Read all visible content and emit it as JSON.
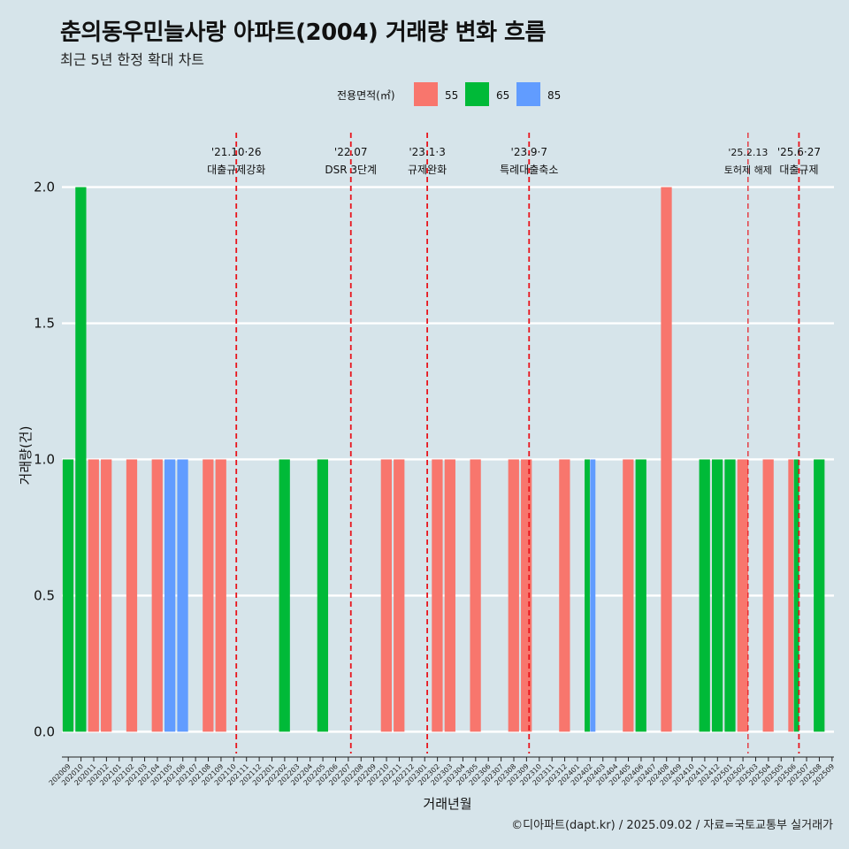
{
  "header": {
    "title": "춘의동우민늘사랑 아파트(2004) 거래량 변화 흐름",
    "subtitle": "최근 5년 한정 확대 차트",
    "caption": "©디아파트(dapt.kr) / 2025.09.02 / 자료=국토교통부 실거래가"
  },
  "chart_data": {
    "type": "bar",
    "title": "춘의동우민늘사랑 아파트(2004) 거래량 변화 흐름",
    "subtitle": "최근 5년 한정 확대 차트",
    "xlabel": "거래년월",
    "ylabel": "거래량(건)",
    "ylim": [
      -0.08,
      2.2
    ],
    "yticks": [
      0.0,
      0.5,
      1.0,
      1.5,
      2.0
    ],
    "ytick_labels": [
      "0.0",
      "0.5",
      "1.0",
      "1.5",
      "2.0"
    ],
    "grid": "horizontal",
    "legend": {
      "title": "전용면적(㎡)",
      "position": "top-center"
    },
    "categories": [
      "202009",
      "202010",
      "202011",
      "202012",
      "202101",
      "202102",
      "202103",
      "202104",
      "202105",
      "202106",
      "202107",
      "202108",
      "202109",
      "202110",
      "202111",
      "202112",
      "202201",
      "202202",
      "202203",
      "202204",
      "202205",
      "202206",
      "202207",
      "202208",
      "202209",
      "202210",
      "202211",
      "202212",
      "202301",
      "202302",
      "202303",
      "202304",
      "202305",
      "202306",
      "202307",
      "202308",
      "202309",
      "202310",
      "202311",
      "202312",
      "202401",
      "202402",
      "202403",
      "202404",
      "202405",
      "202406",
      "202407",
      "202408",
      "202409",
      "202410",
      "202411",
      "202412",
      "202501",
      "202502",
      "202503",
      "202504",
      "202505",
      "202506",
      "202507",
      "202508",
      "202509"
    ],
    "series": [
      {
        "name": "55",
        "color": "#f8766d",
        "values": [
          0,
          0,
          1,
          1,
          0,
          1,
          0,
          1,
          0,
          0,
          0,
          1,
          1,
          0,
          0,
          0,
          0,
          0,
          0,
          0,
          0,
          0,
          0,
          0,
          0,
          1,
          1,
          0,
          0,
          1,
          1,
          0,
          1,
          0,
          0,
          1,
          1,
          0,
          0,
          1,
          0,
          0,
          0,
          0,
          1,
          0,
          0,
          2,
          0,
          0,
          0,
          0,
          0,
          1,
          0,
          1,
          0,
          1,
          0,
          0,
          0
        ]
      },
      {
        "name": "65",
        "color": "#00ba38",
        "values": [
          1,
          2,
          0,
          0,
          0,
          0,
          0,
          0,
          0,
          0,
          0,
          0,
          0,
          0,
          0,
          0,
          0,
          1,
          0,
          0,
          1,
          0,
          0,
          0,
          0,
          0,
          0,
          0,
          0,
          0,
          0,
          0,
          0,
          0,
          0,
          0,
          0,
          0,
          0,
          0,
          0,
          1,
          0,
          0,
          0,
          1,
          0,
          0,
          0,
          0,
          1,
          1,
          1,
          0,
          0,
          0,
          0,
          1,
          0,
          1,
          0
        ]
      },
      {
        "name": "85",
        "color": "#619cff",
        "values": [
          0,
          0,
          0,
          0,
          0,
          0,
          0,
          0,
          1,
          1,
          0,
          0,
          0,
          0,
          0,
          0,
          0,
          0,
          0,
          0,
          0,
          0,
          0,
          0,
          0,
          0,
          0,
          0,
          0,
          0,
          0,
          0,
          0,
          0,
          0,
          0,
          0,
          0,
          0,
          0,
          0,
          1,
          0,
          0,
          0,
          0,
          0,
          0,
          0,
          0,
          0,
          0,
          0,
          0,
          0,
          0,
          0,
          0,
          0,
          0,
          0
        ]
      }
    ],
    "annotations": [
      {
        "at": 13.2,
        "date": "'21.10·26",
        "label": "대출규제강화"
      },
      {
        "at": 22.2,
        "date": "'22.07",
        "label": "DSR 3단계"
      },
      {
        "at": 28.2,
        "date": "'23.1·3",
        "label": "규제완화"
      },
      {
        "at": 36.2,
        "date": "'23.9·7",
        "label": "특례대출축소"
      },
      {
        "at": 53.4,
        "date": "'25.2.13",
        "label": "토허제 해제",
        "small": true
      },
      {
        "at": 57.4,
        "date": "'25.6·27",
        "label": "대출규제"
      }
    ]
  }
}
